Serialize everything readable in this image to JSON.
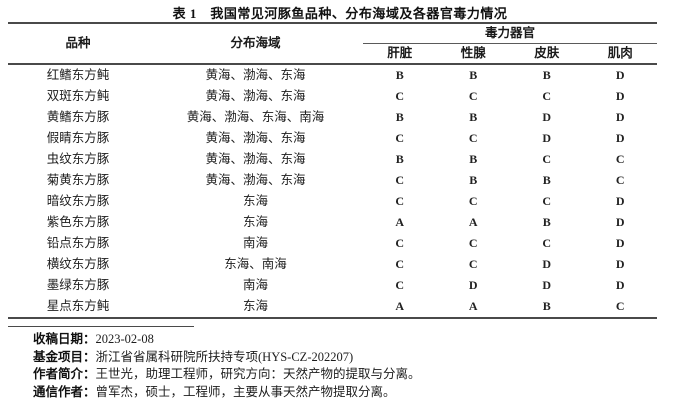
{
  "title": "表 1　我国常见河豚鱼品种、分布海域及各器官毒力情况",
  "table": {
    "col_species": "品种",
    "col_sea": "分布海域",
    "group_header": "毒力器官",
    "organ_headers": [
      "肝脏",
      "性腺",
      "皮肤",
      "肌肉"
    ],
    "rows": [
      {
        "species": "红鳍东方鲀",
        "sea": "黄海、渤海、东海",
        "liver": "B",
        "gonad": "B",
        "skin": "B",
        "muscle": "D"
      },
      {
        "species": "双斑东方鲀",
        "sea": "黄海、渤海、东海",
        "liver": "C",
        "gonad": "C",
        "skin": "C",
        "muscle": "D"
      },
      {
        "species": "黄鳍东方豚",
        "sea": "黄海、渤海、东海、南海",
        "liver": "B",
        "gonad": "B",
        "skin": "D",
        "muscle": "D"
      },
      {
        "species": "假睛东方豚",
        "sea": "黄海、渤海、东海",
        "liver": "C",
        "gonad": "C",
        "skin": "D",
        "muscle": "D"
      },
      {
        "species": "虫纹东方豚",
        "sea": "黄海、渤海、东海",
        "liver": "B",
        "gonad": "B",
        "skin": "C",
        "muscle": "C"
      },
      {
        "species": "菊黄东方豚",
        "sea": "黄海、渤海、东海",
        "liver": "C",
        "gonad": "B",
        "skin": "B",
        "muscle": "C"
      },
      {
        "species": "暗纹东方豚",
        "sea": "东海",
        "liver": "C",
        "gonad": "C",
        "skin": "C",
        "muscle": "D"
      },
      {
        "species": "紫色东方豚",
        "sea": "东海",
        "liver": "A",
        "gonad": "A",
        "skin": "B",
        "muscle": "D"
      },
      {
        "species": "铅点东方豚",
        "sea": "南海",
        "liver": "C",
        "gonad": "C",
        "skin": "C",
        "muscle": "D"
      },
      {
        "species": "横纹东方豚",
        "sea": "东海、南海",
        "liver": "C",
        "gonad": "C",
        "skin": "D",
        "muscle": "D"
      },
      {
        "species": "墨绿东方豚",
        "sea": "南海",
        "liver": "C",
        "gonad": "D",
        "skin": "D",
        "muscle": "D"
      },
      {
        "species": "星点东方鲀",
        "sea": "东海",
        "liver": "A",
        "gonad": "A",
        "skin": "B",
        "muscle": "C"
      }
    ]
  },
  "footer": {
    "lines": [
      {
        "label": "收稿日期：",
        "text": "2023-02-08"
      },
      {
        "label": "基金项目：",
        "text": "浙江省省属科研院所扶持专项(HYS-CZ-202207)"
      },
      {
        "label": "作者简介：",
        "text": "王世光，助理工程师，研究方向：天然产物的提取与分离。"
      },
      {
        "label": "通信作者：",
        "text": "曾军杰，硕士，工程师，主要从事天然产物提取分离。"
      }
    ]
  }
}
